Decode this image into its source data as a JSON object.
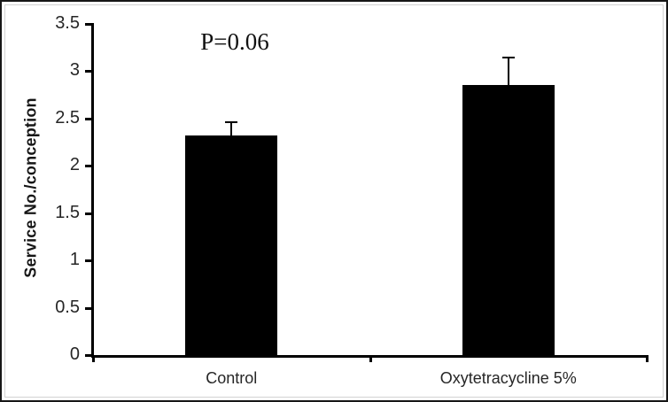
{
  "chart_data": {
    "type": "bar",
    "title": "",
    "ylabel": "Service No./conception",
    "xlabel": "",
    "categories": [
      "Control",
      "Oxytetracycline 5%"
    ],
    "series": [
      {
        "name": "Service No./conception",
        "values": [
          2.32,
          2.85
        ],
        "errors_plus": [
          0.14,
          0.29
        ]
      }
    ],
    "ytick_labels": [
      "0",
      "0.5",
      "1",
      "1.5",
      "2",
      "2.5",
      "3",
      "3.5"
    ],
    "ylim": [
      0,
      3.5
    ],
    "annotation": "P=0.06",
    "bar_color": "#000000",
    "error_bar_color": "#000000",
    "grid": false,
    "legend": false
  }
}
